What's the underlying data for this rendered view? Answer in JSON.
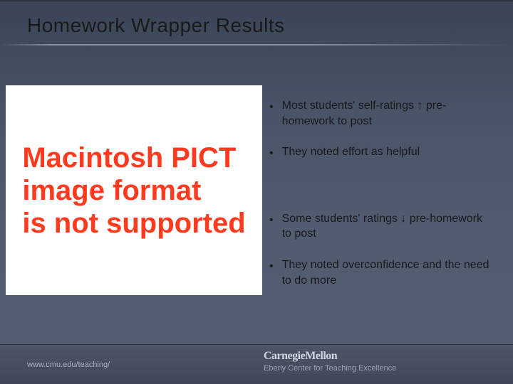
{
  "title": "Homework Wrapper Results",
  "pict_placeholder": {
    "line1": "Macintosh PICT",
    "line2": "image format",
    "line3": "is not supported",
    "text_color": "#ff3b1f",
    "bg_color": "#ffffff"
  },
  "bullets": [
    {
      "text": "Most students' self-ratings ↑ pre-homework to post"
    },
    {
      "text": "They noted effort as helpful"
    },
    {
      "text": "Some students' ratings ↓ pre-homework to post"
    },
    {
      "text": "They noted overconfidence and the need to do more"
    }
  ],
  "footer": {
    "url": "www.cmu.edu/teaching/",
    "brand": "CarnegieMellon",
    "subbrand": "Eberly Center for Teaching Excellence"
  },
  "colors": {
    "bg_top": "#3a4456",
    "bg_bottom": "#545e72",
    "text": "#1a1a1a",
    "footer_text": "#a8b0be"
  }
}
